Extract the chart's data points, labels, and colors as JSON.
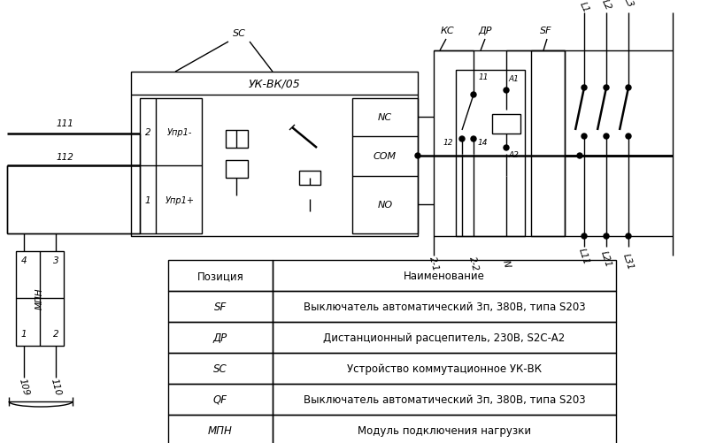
{
  "bg_color": "#ffffff",
  "line_color": "#000000",
  "table_headers": [
    "Позиция",
    "Наименование"
  ],
  "table_rows": [
    [
      "SF",
      "Выключатель автоматический 3п, 380В, типа S203"
    ],
    [
      "ДР",
      "Дистанционный расцепитель, 230В, S2C-A2"
    ],
    [
      "SC",
      "Устройство коммутационное УК-ВК"
    ],
    [
      "QF",
      "Выключатель автоматический 3п, 380В, типа S203"
    ],
    [
      "МПН",
      "Модуль подключения нагрузки"
    ]
  ]
}
